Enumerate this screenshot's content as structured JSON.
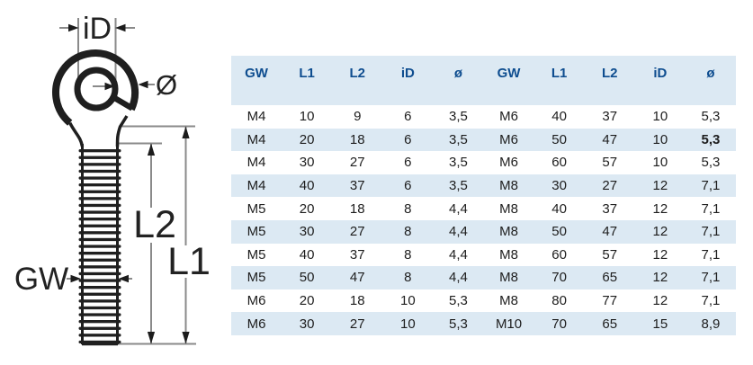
{
  "diagram": {
    "labels": {
      "inner_diameter": "iD",
      "wire_diameter": "Ø",
      "thread_length": "L2",
      "total_length": "L1",
      "thread_size": "GW"
    }
  },
  "table": {
    "headers": [
      "GW",
      "L1",
      "L2",
      "iD",
      "ø"
    ],
    "column_keys": [
      "gw",
      "l1",
      "l2",
      "id",
      "dia"
    ],
    "groups": [
      {
        "rows": [
          [
            "M4",
            "10",
            "9",
            "6",
            "3,5"
          ],
          [
            "M4",
            "20",
            "18",
            "6",
            "3,5"
          ],
          [
            "M4",
            "30",
            "27",
            "6",
            "3,5"
          ],
          [
            "M4",
            "40",
            "37",
            "6",
            "3,5"
          ],
          [
            "M5",
            "20",
            "18",
            "8",
            "4,4"
          ],
          [
            "M5",
            "30",
            "27",
            "8",
            "4,4"
          ],
          [
            "M5",
            "40",
            "37",
            "8",
            "4,4"
          ],
          [
            "M5",
            "50",
            "47",
            "8",
            "4,4"
          ],
          [
            "M6",
            "20",
            "18",
            "10",
            "5,3"
          ],
          [
            "M6",
            "30",
            "27",
            "10",
            "5,3"
          ]
        ]
      },
      {
        "rows": [
          [
            "M6",
            "40",
            "37",
            "10",
            "5,3"
          ],
          [
            "M6",
            "50",
            "47",
            "10",
            "5,3"
          ],
          [
            "M6",
            "60",
            "57",
            "10",
            "5,3"
          ],
          [
            "M8",
            "30",
            "27",
            "12",
            "7,1"
          ],
          [
            "M8",
            "40",
            "37",
            "12",
            "7,1"
          ],
          [
            "M8",
            "50",
            "47",
            "12",
            "7,1"
          ],
          [
            "M8",
            "60",
            "57",
            "12",
            "7,1"
          ],
          [
            "M8",
            "70",
            "65",
            "12",
            "7,1"
          ],
          [
            "M8",
            "80",
            "77",
            "12",
            "7,1"
          ],
          [
            "M10",
            "70",
            "65",
            "15",
            "8,9"
          ]
        ]
      }
    ],
    "bold_cell": {
      "group": 1,
      "row": 1,
      "col": 4
    }
  },
  "colors": {
    "stripe": "#dce9f3",
    "header_text": "#0e4d8f",
    "body_text": "#1d1d1d",
    "outline": "#1f1f1f",
    "dimension_line": "#8a8a8a"
  }
}
